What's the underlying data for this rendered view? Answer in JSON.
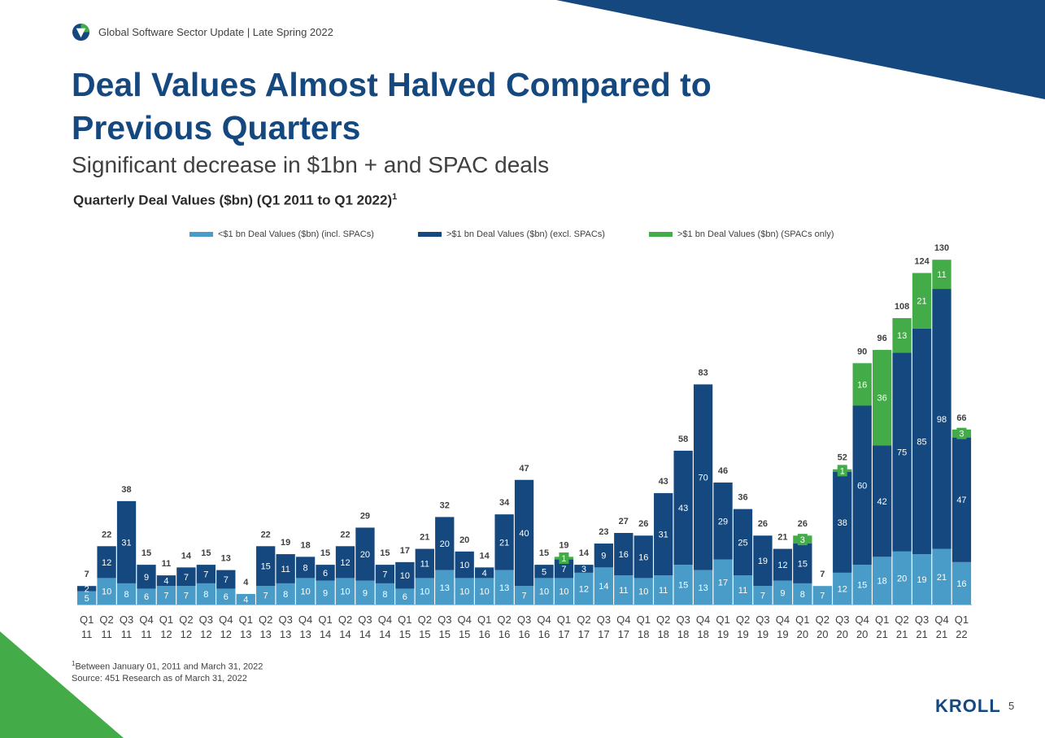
{
  "header": {
    "text": "Global Software Sector Update | Late Spring 2022"
  },
  "title": "Deal Values Almost Halved Compared to Previous Quarters",
  "subtitle": "Significant decrease in $1bn + and SPAC deals",
  "chart_heading": {
    "text": "Quarterly Deal Values ($bn) (Q1 2011 to Q1 2022)",
    "footnote_marker": "1"
  },
  "footnotes": {
    "marker": "1",
    "period": "Between January 01, 2011 and March 31, 2022",
    "source": "Source: 451 Research as of March 31, 2022"
  },
  "brand": "KROLL",
  "page_number": "5",
  "colors": {
    "small_deals": "#4a9cc8",
    "large_deals": "#14487f",
    "spac": "#43ac48",
    "title": "#14487f",
    "corner_green": "#43ac48"
  },
  "chart_data": {
    "type": "bar",
    "stacked": true,
    "legend_position": "top",
    "grid": false,
    "ylim": [
      0,
      130
    ],
    "categories": [
      [
        "Q1",
        "11"
      ],
      [
        "Q2",
        "11"
      ],
      [
        "Q3",
        "11"
      ],
      [
        "Q4",
        "11"
      ],
      [
        "Q1",
        "12"
      ],
      [
        "Q2",
        "12"
      ],
      [
        "Q3",
        "12"
      ],
      [
        "Q4",
        "12"
      ],
      [
        "Q1",
        "13"
      ],
      [
        "Q2",
        "13"
      ],
      [
        "Q3",
        "13"
      ],
      [
        "Q4",
        "13"
      ],
      [
        "Q1",
        "14"
      ],
      [
        "Q2",
        "14"
      ],
      [
        "Q3",
        "14"
      ],
      [
        "Q4",
        "14"
      ],
      [
        "Q1",
        "15"
      ],
      [
        "Q2",
        "15"
      ],
      [
        "Q3",
        "15"
      ],
      [
        "Q4",
        "15"
      ],
      [
        "Q1",
        "16"
      ],
      [
        "Q2",
        "16"
      ],
      [
        "Q3",
        "16"
      ],
      [
        "Q4",
        "16"
      ],
      [
        "Q1",
        "17"
      ],
      [
        "Q2",
        "17"
      ],
      [
        "Q3",
        "17"
      ],
      [
        "Q4",
        "17"
      ],
      [
        "Q1",
        "18"
      ],
      [
        "Q2",
        "18"
      ],
      [
        "Q3",
        "18"
      ],
      [
        "Q4",
        "18"
      ],
      [
        "Q1",
        "19"
      ],
      [
        "Q2",
        "19"
      ],
      [
        "Q3",
        "19"
      ],
      [
        "Q4",
        "19"
      ],
      [
        "Q1",
        "20"
      ],
      [
        "Q2",
        "20"
      ],
      [
        "Q3",
        "20"
      ],
      [
        "Q4",
        "20"
      ],
      [
        "Q1",
        "21"
      ],
      [
        "Q2",
        "21"
      ],
      [
        "Q3",
        "21"
      ],
      [
        "Q4",
        "21"
      ],
      [
        "Q1",
        "22"
      ]
    ],
    "series": [
      {
        "name": "<$1 bn Deal Values ($bn) (incl. SPACs)",
        "color_key": "small_deals",
        "values": [
          5,
          10,
          8,
          6,
          7,
          7,
          8,
          6,
          4,
          7,
          8,
          10,
          9,
          10,
          9,
          8,
          6,
          10,
          13,
          10,
          10,
          13,
          7,
          10,
          10,
          12,
          14,
          11,
          10,
          11,
          15,
          13,
          17,
          11,
          7,
          9,
          8,
          7,
          12,
          15,
          18,
          20,
          19,
          21,
          16
        ]
      },
      {
        "name": ">$1 bn Deal Values ($bn) (excl. SPACs)",
        "color_key": "large_deals",
        "values": [
          2,
          12,
          31,
          9,
          4,
          7,
          7,
          7,
          0,
          15,
          11,
          8,
          6,
          12,
          20,
          7,
          10,
          11,
          20,
          10,
          4,
          21,
          40,
          5,
          7,
          3,
          9,
          16,
          16,
          31,
          43,
          70,
          29,
          25,
          19,
          12,
          15,
          0,
          38,
          60,
          42,
          75,
          85,
          98,
          47
        ]
      },
      {
        "name": ">$1 bn Deal Values ($bn) (SPACs only)",
        "color_key": "spac",
        "values": [
          0,
          0,
          0,
          0,
          0,
          0,
          0,
          0,
          0,
          0,
          0,
          0,
          0,
          0,
          0,
          0,
          0,
          0,
          0,
          0,
          0,
          0,
          0,
          0,
          1,
          0,
          0,
          0,
          0,
          0,
          0,
          0,
          0,
          0,
          0,
          0,
          3,
          0,
          1,
          16,
          36,
          13,
          21,
          11,
          3
        ]
      }
    ],
    "totals": [
      7,
      22,
      38,
      15,
      11,
      14,
      15,
      13,
      4,
      22,
      19,
      18,
      15,
      22,
      29,
      15,
      17,
      21,
      32,
      20,
      14,
      34,
      47,
      15,
      19,
      14,
      23,
      27,
      26,
      43,
      58,
      83,
      46,
      36,
      26,
      21,
      26,
      7,
      52,
      90,
      96,
      108,
      124,
      130,
      66
    ]
  }
}
